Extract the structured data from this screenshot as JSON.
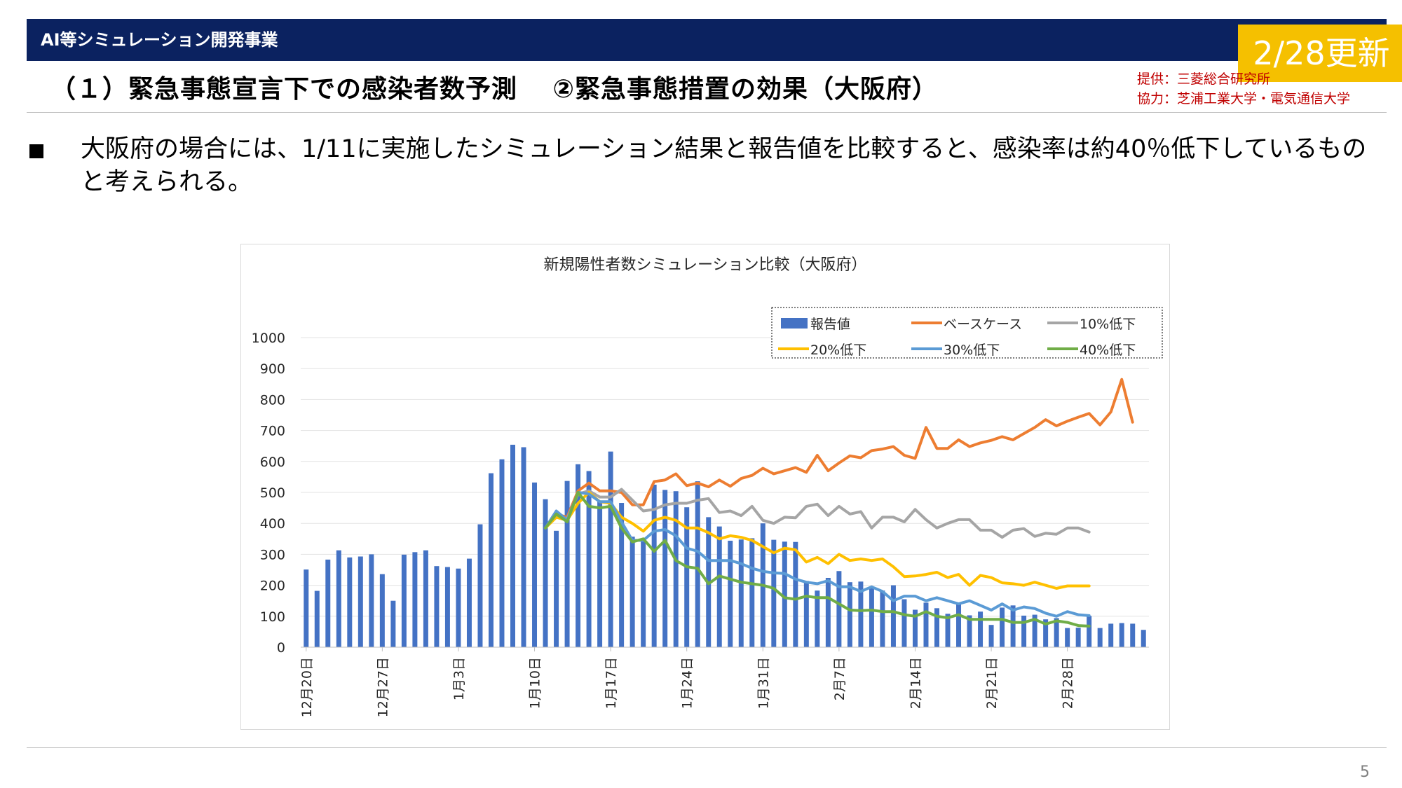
{
  "header": {
    "title": "AI等シミュレーション開発事業",
    "update_badge": "2/28更新"
  },
  "subtitle": "（１）緊急事態宣言下での感染者数予測　 ②緊急事態措置の効果（大阪府）",
  "credits": {
    "provider": "提供：三菱総合研究所",
    "cooperation": "協力：芝浦工業大学・電気通信大学"
  },
  "bullet": {
    "marker": "■",
    "text": "大阪府の場合には、1/11に実施したシミュレーション結果と報告値を比較すると、感染率は約40％低下しているものと考えられる。"
  },
  "page_number": "5",
  "colors": {
    "header_bg": "#0b2260",
    "badge_bg": "#f5c000",
    "credit": "#c00000",
    "reported": "#4472c4",
    "base": "#ed7d31",
    "minus10": "#a5a5a5",
    "minus20": "#ffc000",
    "minus30": "#5b9bd5",
    "minus40": "#70ad47"
  },
  "chart_data": {
    "type": "bar",
    "title": "新規陽性者数シミュレーション比較（大阪府）",
    "xlabel": "",
    "ylabel": "",
    "ylim": [
      0,
      1000
    ],
    "yticks": [
      0,
      100,
      200,
      300,
      400,
      500,
      600,
      700,
      800,
      900,
      1000
    ],
    "x_start": "12月20日",
    "x_ticks": [
      "12月20日",
      "12月27日",
      "1月3日",
      "1月10日",
      "1月17日",
      "1月24日",
      "1月31日",
      "2月7日",
      "2月14日",
      "2月21日",
      "2月28日"
    ],
    "grid": true,
    "legend_position": "top-right",
    "series": [
      {
        "name": "報告値",
        "kind": "bar",
        "color": "#4472c4",
        "start_index": 0,
        "values": [
          251,
          182,
          283,
          313,
          290,
          293,
          300,
          236,
          150,
          299,
          307,
          313,
          262,
          259,
          254,
          286,
          397,
          562,
          607,
          654,
          646,
          532,
          478,
          376,
          537,
          591,
          569,
          470,
          632,
          466,
          357,
          344,
          525,
          508,
          504,
          452,
          536,
          420,
          390,
          344,
          348,
          352,
          400,
          347,
          341,
          340,
          214,
          183,
          224,
          246,
          210,
          212,
          190,
          183,
          200,
          155,
          121,
          144,
          126,
          108,
          142,
          103,
          115,
          72,
          128,
          135,
          102,
          105,
          90,
          94,
          62,
          63,
          101,
          62,
          76,
          78,
          76,
          56
        ]
      },
      {
        "name": "ベースケース",
        "kind": "line",
        "color": "#ed7d31",
        "start_index": 22,
        "values": [
          385,
          430,
          420,
          505,
          530,
          505,
          505,
          500,
          460,
          460,
          535,
          540,
          560,
          522,
          530,
          518,
          540,
          520,
          545,
          555,
          578,
          560,
          570,
          580,
          565,
          620,
          570,
          595,
          618,
          612,
          635,
          640,
          648,
          620,
          610,
          710,
          642,
          642,
          670,
          648,
          660,
          668,
          680,
          670,
          690,
          710,
          735,
          715,
          730,
          743,
          755,
          718,
          760,
          865,
          727
        ]
      },
      {
        "name": "10%低下",
        "kind": "line",
        "color": "#a5a5a5",
        "start_index": 22,
        "values": [
          385,
          425,
          415,
          495,
          505,
          485,
          485,
          510,
          475,
          440,
          445,
          460,
          465,
          465,
          475,
          480,
          435,
          440,
          425,
          455,
          410,
          400,
          420,
          418,
          455,
          462,
          425,
          455,
          430,
          438,
          385,
          420,
          420,
          405,
          445,
          412,
          385,
          400,
          412,
          412,
          378,
          378,
          355,
          378,
          383,
          358,
          368,
          365,
          385,
          385,
          372
        ]
      },
      {
        "name": "20%低下",
        "kind": "line",
        "color": "#ffc000",
        "start_index": 22,
        "values": [
          385,
          420,
          410,
          465,
          500,
          470,
          465,
          420,
          400,
          375,
          410,
          420,
          410,
          385,
          385,
          370,
          350,
          360,
          355,
          345,
          325,
          305,
          320,
          315,
          275,
          290,
          270,
          300,
          280,
          285,
          280,
          285,
          260,
          228,
          230,
          235,
          242,
          225,
          235,
          200,
          232,
          225,
          208,
          205,
          200,
          210,
          200,
          190,
          198,
          198,
          198
        ]
      },
      {
        "name": "30%低下",
        "kind": "line",
        "color": "#5b9bd5",
        "start_index": 22,
        "values": [
          385,
          440,
          410,
          500,
          495,
          470,
          470,
          405,
          345,
          345,
          375,
          380,
          360,
          320,
          310,
          280,
          280,
          280,
          270,
          255,
          245,
          240,
          238,
          220,
          210,
          205,
          215,
          195,
          195,
          180,
          195,
          180,
          150,
          165,
          165,
          150,
          160,
          150,
          140,
          150,
          135,
          120,
          140,
          120,
          130,
          125,
          110,
          100,
          115,
          105,
          102
        ]
      },
      {
        "name": "40%低下",
        "kind": "line",
        "color": "#70ad47",
        "start_index": 22,
        "values": [
          385,
          430,
          405,
          500,
          455,
          450,
          455,
          385,
          340,
          350,
          310,
          345,
          280,
          260,
          255,
          205,
          230,
          220,
          210,
          205,
          200,
          190,
          160,
          155,
          165,
          160,
          160,
          140,
          120,
          118,
          120,
          115,
          115,
          105,
          100,
          115,
          100,
          95,
          105,
          90,
          90,
          90,
          90,
          80,
          80,
          90,
          75,
          85,
          80,
          70,
          68
        ]
      }
    ]
  }
}
